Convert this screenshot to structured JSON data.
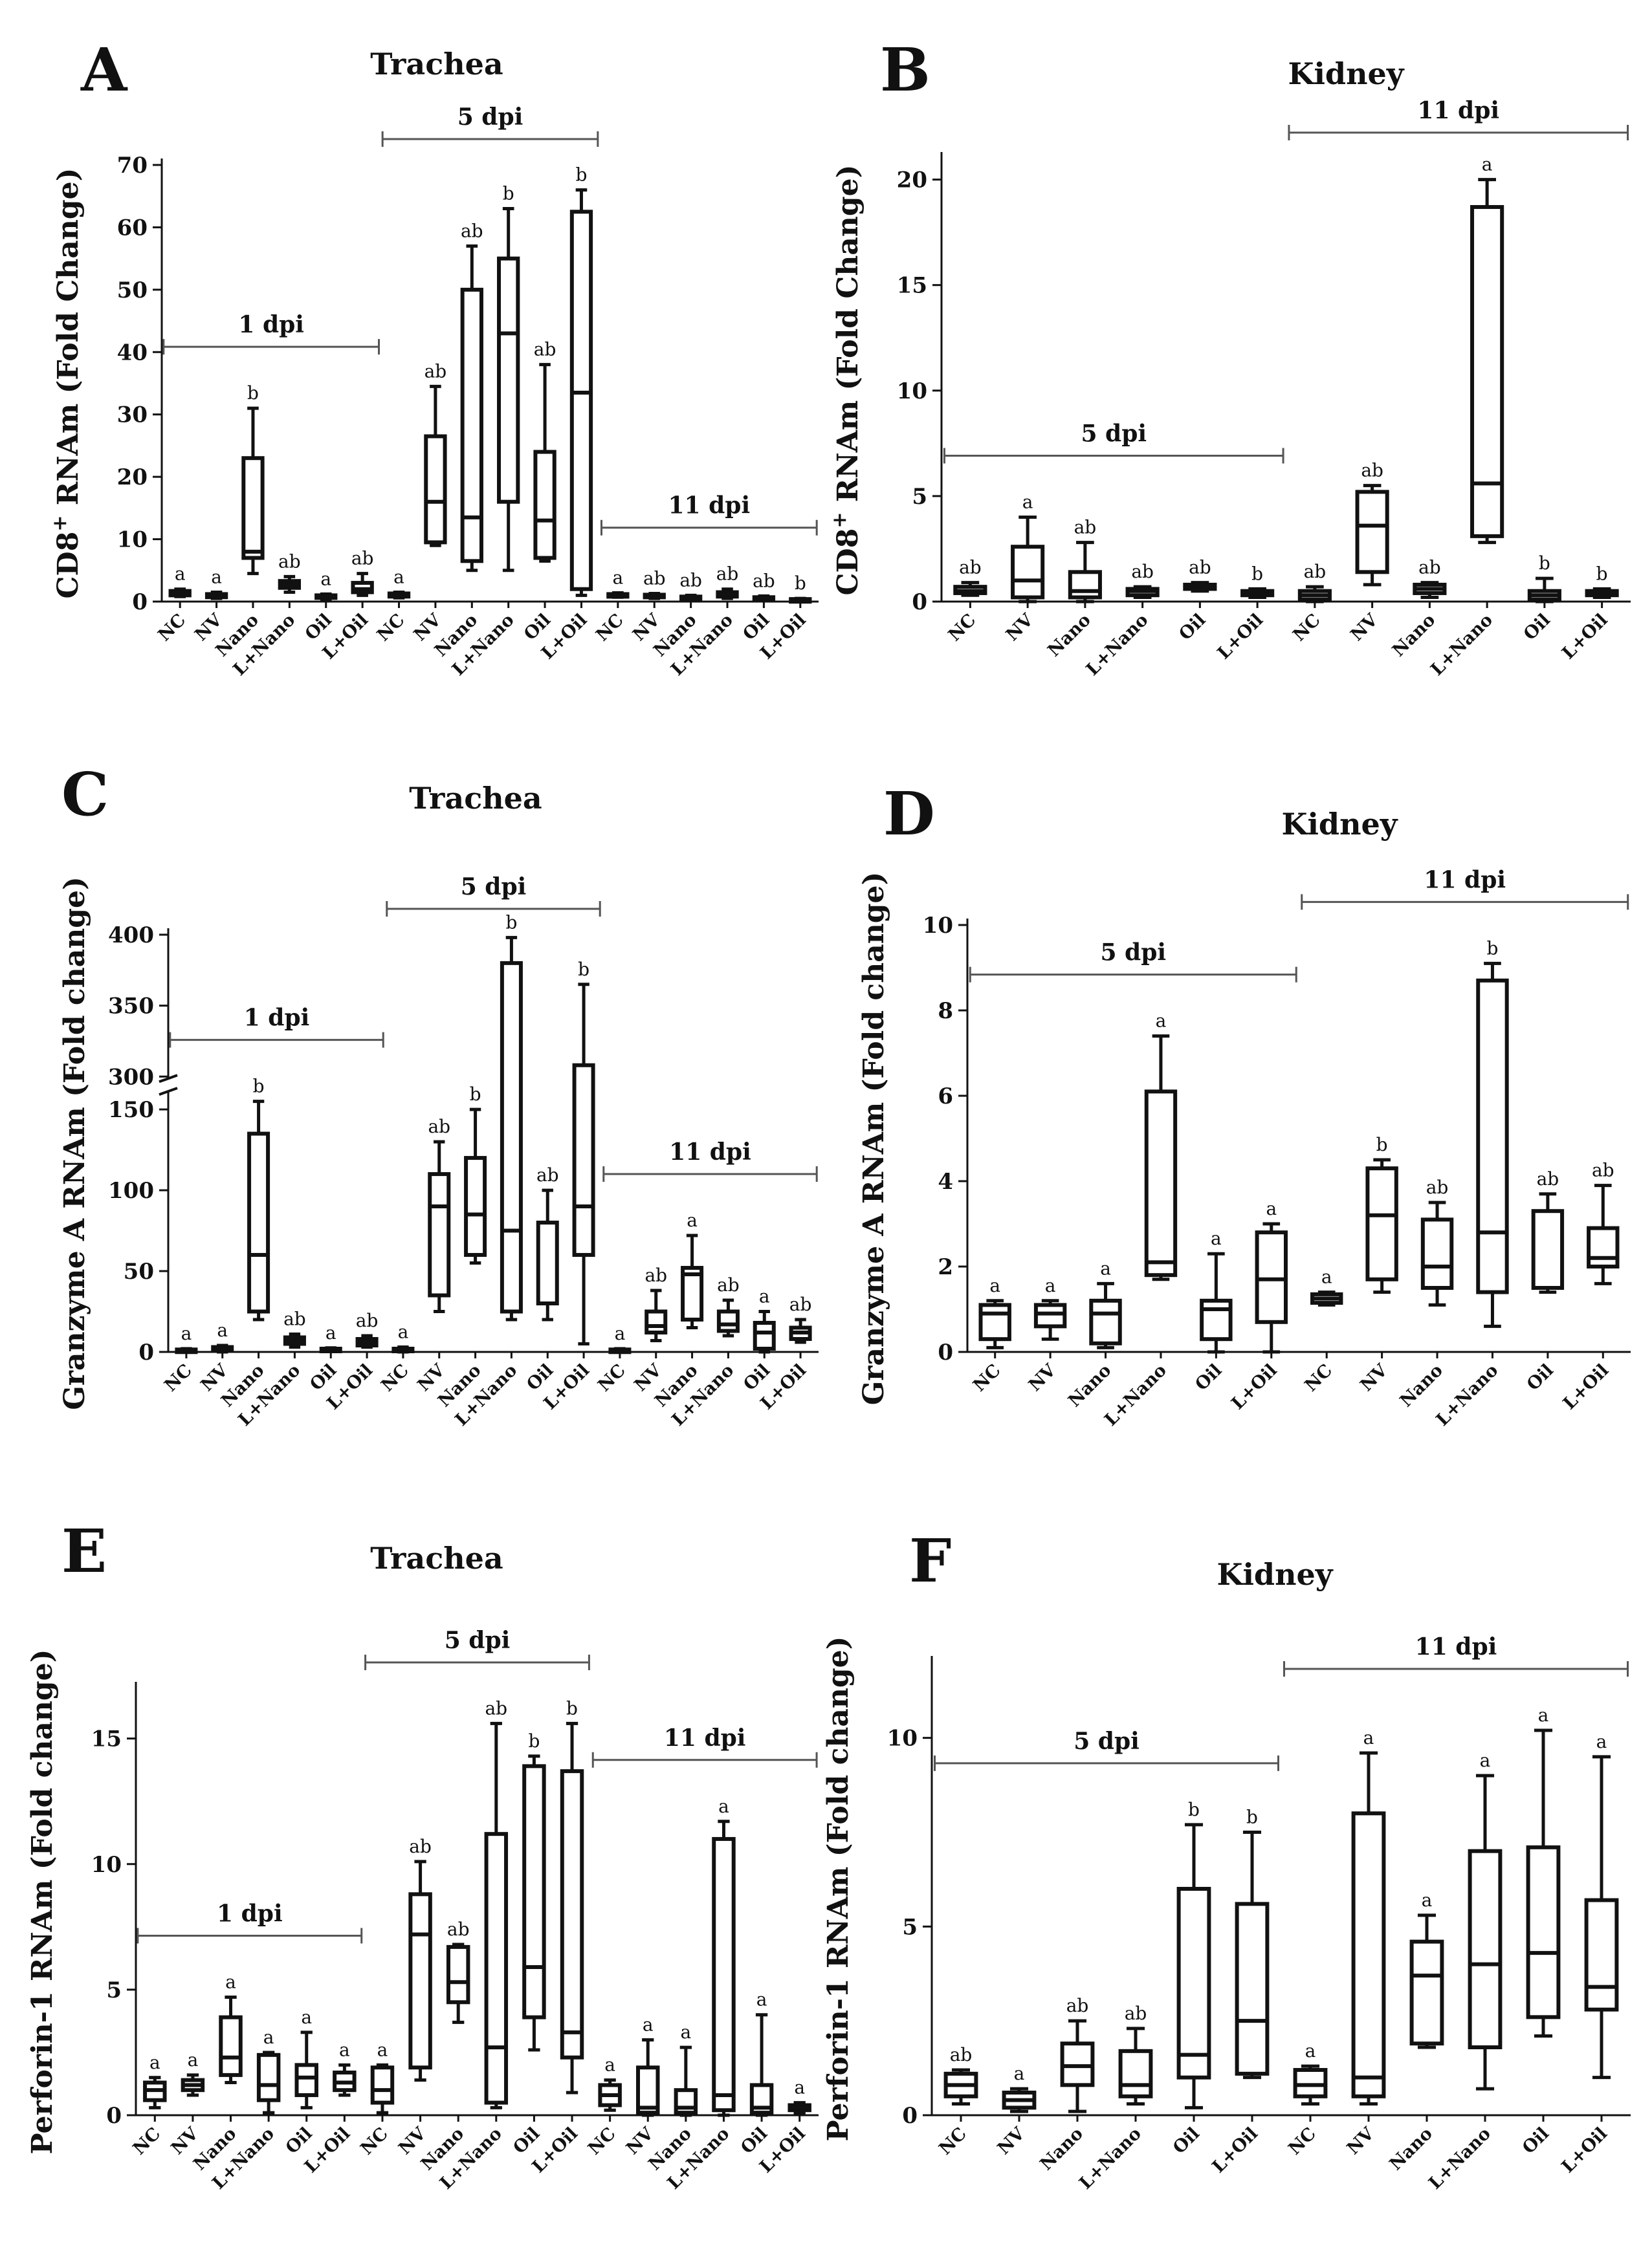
{
  "chart_data": [
    {
      "id": "A",
      "type": "box",
      "panel_letter": "A",
      "title": "Trachea",
      "ylabel_main": "CD8",
      "ylabel_sup": "+",
      "ylabel_rest": " RNAm (Fold Change)",
      "ylim": [
        0,
        70
      ],
      "yticks": [
        0,
        10,
        20,
        30,
        40,
        50,
        60,
        70
      ],
      "groups": [
        {
          "label": "1 dpi",
          "start": 0,
          "end": 5
        },
        {
          "label": "5 dpi",
          "start": 6,
          "end": 11
        },
        {
          "label": "11 dpi",
          "start": 12,
          "end": 17
        }
      ],
      "boxes": [
        {
          "cat": "NC",
          "min": 0.8,
          "q1": 1.0,
          "median": 1.3,
          "q3": 1.7,
          "max": 2.0,
          "sig": "a"
        },
        {
          "cat": "NV",
          "min": 0.5,
          "q1": 0.7,
          "median": 0.9,
          "q3": 1.2,
          "max": 1.5,
          "sig": "a"
        },
        {
          "cat": "Nano",
          "min": 4.5,
          "q1": 7,
          "median": 8,
          "q3": 23,
          "max": 31,
          "sig": "b"
        },
        {
          "cat": "L+Nano",
          "min": 1.5,
          "q1": 2.2,
          "median": 2.8,
          "q3": 3.3,
          "max": 4,
          "sig": "ab"
        },
        {
          "cat": "Oil",
          "min": 0.4,
          "q1": 0.6,
          "median": 0.8,
          "q3": 1.0,
          "max": 1.2,
          "sig": "a"
        },
        {
          "cat": "L+Oil",
          "min": 1,
          "q1": 1.5,
          "median": 2,
          "q3": 3,
          "max": 4.5,
          "sig": "ab"
        },
        {
          "cat": "NC",
          "min": 0.6,
          "q1": 0.8,
          "median": 1.0,
          "q3": 1.3,
          "max": 1.5,
          "sig": "a"
        },
        {
          "cat": "NV",
          "min": 9,
          "q1": 9.5,
          "median": 16,
          "q3": 26.5,
          "max": 34.5,
          "sig": "ab"
        },
        {
          "cat": "Nano",
          "min": 5,
          "q1": 6.5,
          "median": 13.5,
          "q3": 50,
          "max": 57,
          "sig": "ab"
        },
        {
          "cat": "L+Nano",
          "min": 5,
          "q1": 16,
          "median": 43,
          "q3": 55,
          "max": 63,
          "sig": "b"
        },
        {
          "cat": "Oil",
          "min": 6.5,
          "q1": 7,
          "median": 13,
          "q3": 24,
          "max": 38,
          "sig": "ab"
        },
        {
          "cat": "L+Oil",
          "min": 1,
          "q1": 2,
          "median": 33.5,
          "q3": 62.5,
          "max": 66,
          "sig": "b"
        },
        {
          "cat": "NC",
          "min": 0.7,
          "q1": 0.8,
          "median": 1.0,
          "q3": 1.2,
          "max": 1.4,
          "sig": "a"
        },
        {
          "cat": "NV",
          "min": 0.5,
          "q1": 0.7,
          "median": 0.9,
          "q3": 1.1,
          "max": 1.3,
          "sig": "ab"
        },
        {
          "cat": "Nano",
          "min": 0.3,
          "q1": 0.4,
          "median": 0.6,
          "q3": 0.8,
          "max": 1.0,
          "sig": "ab"
        },
        {
          "cat": "L+Nano",
          "min": 0.5,
          "q1": 0.8,
          "median": 1.1,
          "q3": 1.5,
          "max": 2.0,
          "sig": "ab"
        },
        {
          "cat": "Oil",
          "min": 0.3,
          "q1": 0.4,
          "median": 0.5,
          "q3": 0.7,
          "max": 0.9,
          "sig": "ab"
        },
        {
          "cat": "L+Oil",
          "min": 0.1,
          "q1": 0.2,
          "median": 0.3,
          "q3": 0.4,
          "max": 0.5,
          "sig": "b"
        }
      ]
    },
    {
      "id": "B",
      "type": "box",
      "panel_letter": "B",
      "title": "Kidney",
      "ylabel_main": "CD8",
      "ylabel_sup": "+",
      "ylabel_rest": " RNAm (Fold Change)",
      "ylim": [
        0,
        21
      ],
      "yticks": [
        0,
        5,
        10,
        15,
        20
      ],
      "groups": [
        {
          "label": "5 dpi",
          "start": 0,
          "end": 5
        },
        {
          "label": "11 dpi",
          "start": 6,
          "end": 11
        }
      ],
      "boxes": [
        {
          "cat": "NC",
          "min": 0.3,
          "q1": 0.4,
          "median": 0.5,
          "q3": 0.7,
          "max": 0.9,
          "sig": "ab"
        },
        {
          "cat": "NV",
          "min": 0,
          "q1": 0.2,
          "median": 1,
          "q3": 2.6,
          "max": 4,
          "sig": "a"
        },
        {
          "cat": "Nano",
          "min": 0,
          "q1": 0.2,
          "median": 0.5,
          "q3": 1.4,
          "max": 2.8,
          "sig": "ab"
        },
        {
          "cat": "L+Nano",
          "min": 0.2,
          "q1": 0.3,
          "median": 0.5,
          "q3": 0.6,
          "max": 0.7,
          "sig": "ab"
        },
        {
          "cat": "Oil",
          "min": 0.5,
          "q1": 0.6,
          "median": 0.7,
          "q3": 0.8,
          "max": 0.9,
          "sig": "ab"
        },
        {
          "cat": "L+Oil",
          "min": 0.2,
          "q1": 0.3,
          "median": 0.4,
          "q3": 0.5,
          "max": 0.6,
          "sig": "b"
        },
        {
          "cat": "NC",
          "min": 0,
          "q1": 0.1,
          "median": 0.3,
          "q3": 0.5,
          "max": 0.7,
          "sig": "ab"
        },
        {
          "cat": "NV",
          "min": 0.8,
          "q1": 1.4,
          "median": 3.6,
          "q3": 5.2,
          "max": 5.5,
          "sig": "ab"
        },
        {
          "cat": "Nano",
          "min": 0.2,
          "q1": 0.4,
          "median": 0.6,
          "q3": 0.8,
          "max": 0.9,
          "sig": "ab"
        },
        {
          "cat": "L+Nano",
          "min": 2.8,
          "q1": 3.1,
          "median": 5.6,
          "q3": 18.7,
          "max": 20,
          "sig": "a"
        },
        {
          "cat": "Oil",
          "min": 0,
          "q1": 0.1,
          "median": 0.3,
          "q3": 0.5,
          "max": 1.1,
          "sig": "b"
        },
        {
          "cat": "L+Oil",
          "min": 0.2,
          "q1": 0.3,
          "median": 0.4,
          "q3": 0.5,
          "max": 0.6,
          "sig": "b"
        }
      ]
    },
    {
      "id": "C",
      "type": "box",
      "panel_letter": "C",
      "title": "Trachea",
      "ylabel_main": "Granzyme A RNAm (Fold change)",
      "ylabel_sup": "",
      "ylabel_rest": "",
      "ylim": [
        0,
        400
      ],
      "yticks": [
        0,
        50,
        100,
        150,
        300,
        350,
        400
      ],
      "axis_break": [
        160,
        300
      ],
      "groups": [
        {
          "label": "1 dpi",
          "start": 0,
          "end": 5
        },
        {
          "label": "5 dpi",
          "start": 6,
          "end": 11
        },
        {
          "label": "11 dpi",
          "start": 12,
          "end": 17
        }
      ],
      "boxes": [
        {
          "cat": "NC",
          "min": 0,
          "q1": 0.5,
          "median": 1,
          "q3": 1.5,
          "max": 2,
          "sig": "a"
        },
        {
          "cat": "NV",
          "min": 0,
          "q1": 1,
          "median": 2,
          "q3": 3,
          "max": 4,
          "sig": "a"
        },
        {
          "cat": "Nano",
          "min": 20,
          "q1": 25,
          "median": 60,
          "q3": 135,
          "max": 155,
          "sig": "b"
        },
        {
          "cat": "L+Nano",
          "min": 3,
          "q1": 5,
          "median": 7,
          "q3": 9,
          "max": 11,
          "sig": "ab"
        },
        {
          "cat": "Oil",
          "min": 0.5,
          "q1": 1,
          "median": 1.5,
          "q3": 2,
          "max": 2.5,
          "sig": "a"
        },
        {
          "cat": "L+Oil",
          "min": 3,
          "q1": 4,
          "median": 6,
          "q3": 8,
          "max": 10,
          "sig": "ab"
        },
        {
          "cat": "NC",
          "min": 0,
          "q1": 0.5,
          "median": 1,
          "q3": 2,
          "max": 3,
          "sig": "a"
        },
        {
          "cat": "NV",
          "min": 25,
          "q1": 35,
          "median": 90,
          "q3": 110,
          "max": 130,
          "sig": "ab"
        },
        {
          "cat": "Nano",
          "min": 55,
          "q1": 60,
          "median": 85,
          "q3": 120,
          "max": 150,
          "sig": "b"
        },
        {
          "cat": "L+Nano",
          "min": 20,
          "q1": 25,
          "median": 75,
          "q3": 380,
          "max": 398,
          "sig": "b"
        },
        {
          "cat": "Oil",
          "min": 20,
          "q1": 30,
          "median": 30,
          "q3": 80,
          "max": 100,
          "sig": "ab"
        },
        {
          "cat": "L+Oil",
          "min": 5,
          "q1": 60,
          "median": 90,
          "q3": 308,
          "max": 365,
          "sig": "b"
        },
        {
          "cat": "NC",
          "min": 0,
          "q1": 0.5,
          "median": 1,
          "q3": 1.5,
          "max": 2,
          "sig": "a"
        },
        {
          "cat": "NV",
          "min": 7,
          "q1": 12,
          "median": 16,
          "q3": 25,
          "max": 38,
          "sig": "ab"
        },
        {
          "cat": "Nano",
          "min": 15,
          "q1": 20,
          "median": 48,
          "q3": 52,
          "max": 72,
          "sig": "a"
        },
        {
          "cat": "L+Nano",
          "min": 10,
          "q1": 13,
          "median": 17,
          "q3": 25,
          "max": 32,
          "sig": "ab"
        },
        {
          "cat": "Oil",
          "min": 0,
          "q1": 2,
          "median": 12,
          "q3": 18,
          "max": 25,
          "sig": "a"
        },
        {
          "cat": "L+Oil",
          "min": 6,
          "q1": 8,
          "median": 12,
          "q3": 15,
          "max": 20,
          "sig": "ab"
        }
      ]
    },
    {
      "id": "D",
      "type": "box",
      "panel_letter": "D",
      "title": "Kidney",
      "ylabel_main": "Granzyme A RNAm (Fold change)",
      "ylabel_sup": "",
      "ylabel_rest": "",
      "ylim": [
        0,
        10
      ],
      "yticks": [
        0,
        2,
        4,
        6,
        8,
        10
      ],
      "groups": [
        {
          "label": "5 dpi",
          "start": 0,
          "end": 5
        },
        {
          "label": "11 dpi",
          "start": 6,
          "end": 11
        }
      ],
      "boxes": [
        {
          "cat": "NC",
          "min": 0.1,
          "q1": 0.3,
          "median": 0.9,
          "q3": 1.1,
          "max": 1.2,
          "sig": "a"
        },
        {
          "cat": "NV",
          "min": 0.3,
          "q1": 0.6,
          "median": 0.9,
          "q3": 1.1,
          "max": 1.2,
          "sig": "a"
        },
        {
          "cat": "Nano",
          "min": 0.1,
          "q1": 0.2,
          "median": 0.9,
          "q3": 1.2,
          "max": 1.6,
          "sig": "a"
        },
        {
          "cat": "L+Nano",
          "min": 1.7,
          "q1": 1.8,
          "median": 2.1,
          "q3": 6.1,
          "max": 7.4,
          "sig": "a"
        },
        {
          "cat": "Oil",
          "min": 0,
          "q1": 0.3,
          "median": 1.0,
          "q3": 1.2,
          "max": 2.3,
          "sig": "a"
        },
        {
          "cat": "L+Oil",
          "min": 0,
          "q1": 0.7,
          "median": 1.7,
          "q3": 2.8,
          "max": 3.0,
          "sig": "a"
        },
        {
          "cat": "NC",
          "min": 1.1,
          "q1": 1.15,
          "median": 1.25,
          "q3": 1.35,
          "max": 1.4,
          "sig": "a"
        },
        {
          "cat": "NV",
          "min": 1.4,
          "q1": 1.7,
          "median": 3.2,
          "q3": 4.3,
          "max": 4.5,
          "sig": "b"
        },
        {
          "cat": "Nano",
          "min": 1.1,
          "q1": 1.5,
          "median": 2.0,
          "q3": 3.1,
          "max": 3.5,
          "sig": "ab"
        },
        {
          "cat": "L+Nano",
          "min": 0.6,
          "q1": 1.4,
          "median": 2.8,
          "q3": 8.7,
          "max": 9.1,
          "sig": "b"
        },
        {
          "cat": "Oil",
          "min": 1.4,
          "q1": 1.5,
          "median": 1.5,
          "q3": 3.3,
          "max": 3.7,
          "sig": "ab"
        },
        {
          "cat": "L+Oil",
          "min": 1.6,
          "q1": 2.0,
          "median": 2.2,
          "q3": 2.9,
          "max": 3.9,
          "sig": "ab"
        }
      ]
    },
    {
      "id": "E",
      "type": "box",
      "panel_letter": "E",
      "title": "Trachea",
      "ylabel_main": "Perforin-1 RNAm (Fold change)",
      "ylabel_sup": "",
      "ylabel_rest": "",
      "ylim": [
        0,
        17
      ],
      "yticks": [
        0,
        5,
        10,
        15
      ],
      "groups": [
        {
          "label": "1 dpi",
          "start": 0,
          "end": 5
        },
        {
          "label": "5 dpi",
          "start": 6,
          "end": 11
        },
        {
          "label": "11 dpi",
          "start": 12,
          "end": 17
        }
      ],
      "boxes": [
        {
          "cat": "NC",
          "min": 0.3,
          "q1": 0.6,
          "median": 1.0,
          "q3": 1.3,
          "max": 1.5,
          "sig": "a"
        },
        {
          "cat": "NV",
          "min": 0.8,
          "q1": 1.0,
          "median": 1.2,
          "q3": 1.4,
          "max": 1.6,
          "sig": "a"
        },
        {
          "cat": "Nano",
          "min": 1.3,
          "q1": 1.6,
          "median": 2.3,
          "q3": 3.9,
          "max": 4.7,
          "sig": "a"
        },
        {
          "cat": "L+Nano",
          "min": 0.1,
          "q1": 0.6,
          "median": 1.2,
          "q3": 2.4,
          "max": 2.5,
          "sig": "a"
        },
        {
          "cat": "Oil",
          "min": 0.3,
          "q1": 0.8,
          "median": 1.5,
          "q3": 2.0,
          "max": 3.3,
          "sig": "a"
        },
        {
          "cat": "L+Oil",
          "min": 0.8,
          "q1": 1.0,
          "median": 1.3,
          "q3": 1.7,
          "max": 2.0,
          "sig": "a"
        },
        {
          "cat": "NC",
          "min": 0.1,
          "q1": 0.5,
          "median": 1.0,
          "q3": 1.9,
          "max": 2.0,
          "sig": "a"
        },
        {
          "cat": "NV",
          "min": 1.4,
          "q1": 1.9,
          "median": 7.2,
          "q3": 8.8,
          "max": 10.1,
          "sig": "ab"
        },
        {
          "cat": "Nano",
          "min": 3.7,
          "q1": 4.5,
          "median": 5.3,
          "q3": 6.7,
          "max": 6.8,
          "sig": "ab"
        },
        {
          "cat": "L+Nano",
          "min": 0.3,
          "q1": 0.5,
          "median": 2.7,
          "q3": 11.2,
          "max": 15.6,
          "sig": "ab"
        },
        {
          "cat": "Oil",
          "min": 2.6,
          "q1": 3.9,
          "median": 5.9,
          "q3": 13.9,
          "max": 14.3,
          "sig": "b"
        },
        {
          "cat": "L+Oil",
          "min": 0.9,
          "q1": 2.3,
          "median": 3.3,
          "q3": 13.7,
          "max": 15.6,
          "sig": "b"
        },
        {
          "cat": "NC",
          "min": 0.2,
          "q1": 0.4,
          "median": 0.8,
          "q3": 1.2,
          "max": 1.4,
          "sig": "a"
        },
        {
          "cat": "NV",
          "min": 0,
          "q1": 0.1,
          "median": 0.3,
          "q3": 1.9,
          "max": 3.0,
          "sig": "a"
        },
        {
          "cat": "Nano",
          "min": 0,
          "q1": 0.1,
          "median": 0.3,
          "q3": 1.0,
          "max": 2.7,
          "sig": "a"
        },
        {
          "cat": "L+Nano",
          "min": 0,
          "q1": 0.2,
          "median": 0.8,
          "q3": 11.0,
          "max": 11.7,
          "sig": "a"
        },
        {
          "cat": "Oil",
          "min": 0,
          "q1": 0.1,
          "median": 0.3,
          "q3": 1.2,
          "max": 4.0,
          "sig": "a"
        },
        {
          "cat": "L+Oil",
          "min": 0.1,
          "q1": 0.2,
          "median": 0.3,
          "q3": 0.4,
          "max": 0.5,
          "sig": "a"
        }
      ]
    },
    {
      "id": "F",
      "type": "box",
      "panel_letter": "F",
      "title": "Kidney",
      "ylabel_main": "Perforin-1 RNAm (Fold change)",
      "ylabel_sup": "",
      "ylabel_rest": "",
      "ylim": [
        0,
        12
      ],
      "yticks": [
        0,
        5,
        10
      ],
      "groups": [
        {
          "label": "5 dpi",
          "start": 0,
          "end": 5
        },
        {
          "label": "11 dpi",
          "start": 6,
          "end": 11
        }
      ],
      "boxes": [
        {
          "cat": "NC",
          "min": 0.3,
          "q1": 0.5,
          "median": 0.8,
          "q3": 1.1,
          "max": 1.2,
          "sig": "ab"
        },
        {
          "cat": "NV",
          "min": 0.1,
          "q1": 0.2,
          "median": 0.4,
          "q3": 0.6,
          "max": 0.7,
          "sig": "a"
        },
        {
          "cat": "Nano",
          "min": 0.1,
          "q1": 0.8,
          "median": 1.3,
          "q3": 1.9,
          "max": 2.5,
          "sig": "ab"
        },
        {
          "cat": "L+Nano",
          "min": 0.3,
          "q1": 0.5,
          "median": 0.8,
          "q3": 1.7,
          "max": 2.3,
          "sig": "ab"
        },
        {
          "cat": "Oil",
          "min": 0.2,
          "q1": 1.0,
          "median": 1.6,
          "q3": 6.0,
          "max": 7.7,
          "sig": "b"
        },
        {
          "cat": "L+Oil",
          "min": 1.0,
          "q1": 1.1,
          "median": 2.5,
          "q3": 5.6,
          "max": 7.5,
          "sig": "b"
        },
        {
          "cat": "NC",
          "min": 0.3,
          "q1": 0.5,
          "median": 0.8,
          "q3": 1.2,
          "max": 1.3,
          "sig": "a"
        },
        {
          "cat": "NV",
          "min": 0.3,
          "q1": 0.5,
          "median": 1.0,
          "q3": 8.0,
          "max": 9.6,
          "sig": "a"
        },
        {
          "cat": "Nano",
          "min": 1.8,
          "q1": 1.9,
          "median": 3.7,
          "q3": 4.6,
          "max": 5.3,
          "sig": "a"
        },
        {
          "cat": "L+Nano",
          "min": 0.7,
          "q1": 1.8,
          "median": 4.0,
          "q3": 7.0,
          "max": 9.0,
          "sig": "a"
        },
        {
          "cat": "Oil",
          "min": 2.1,
          "q1": 2.6,
          "median": 4.3,
          "q3": 7.1,
          "max": 10.2,
          "sig": "a"
        },
        {
          "cat": "L+Oil",
          "min": 1.0,
          "q1": 2.8,
          "median": 3.4,
          "q3": 5.7,
          "max": 9.5,
          "sig": "a"
        }
      ]
    }
  ]
}
